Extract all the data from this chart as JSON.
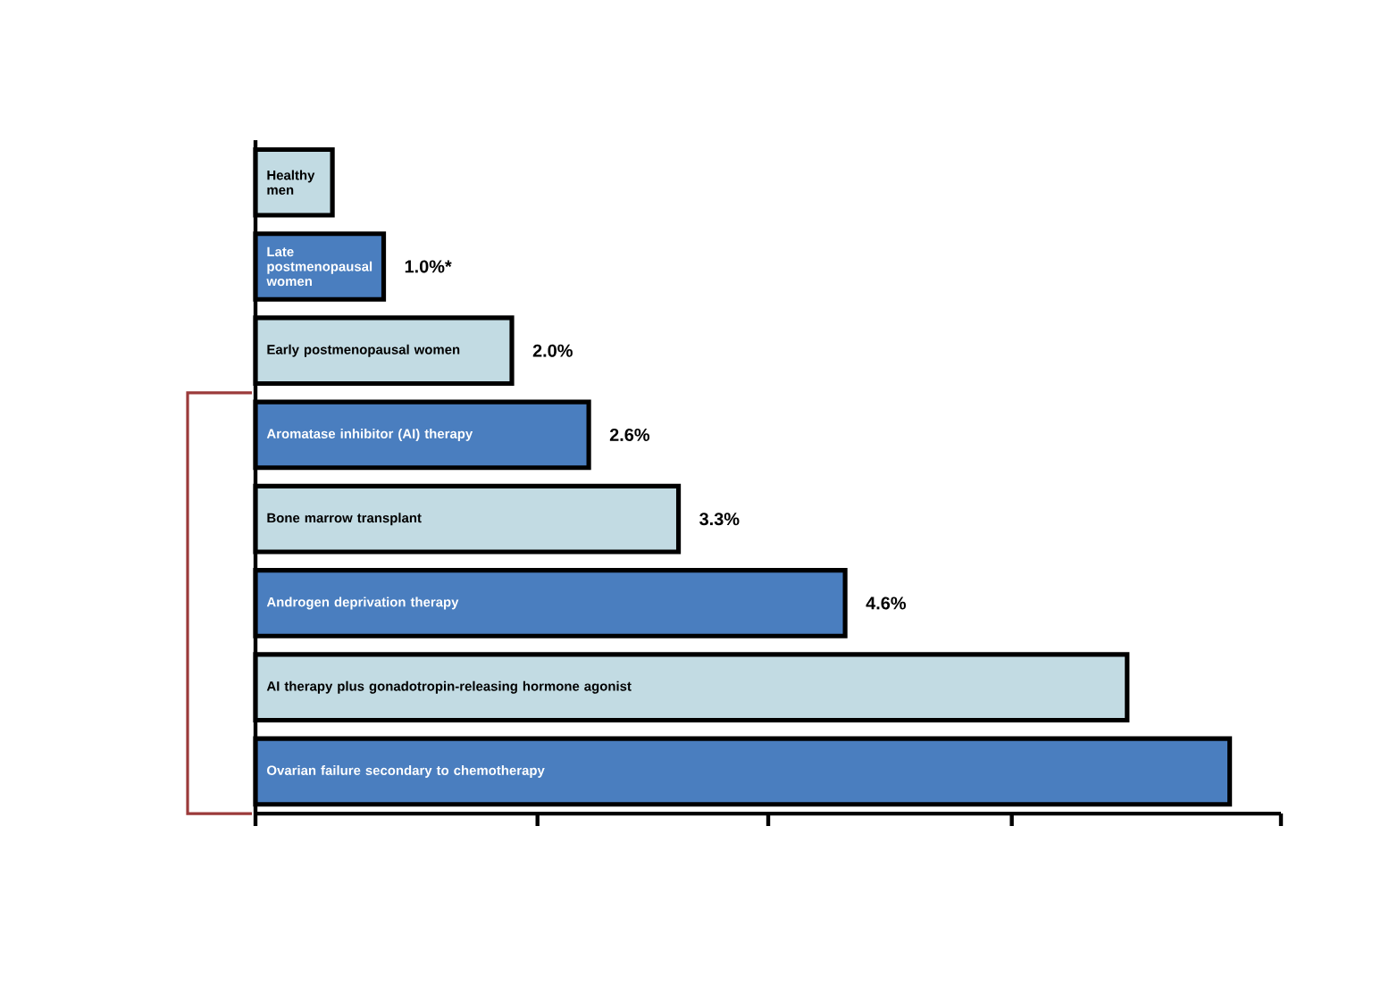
{
  "chart_data": {
    "type": "bar",
    "orientation": "horizontal",
    "categories": [
      "Healthy men",
      "Late postmenopausal women",
      "Early postmenopausal women",
      "Aromatase inhibitor (AI) therapy",
      "Bone marrow transplant",
      "Androgen deprivation therapy",
      "AI therapy plus gonadotropin-releasing hormone agonist",
      "Ovarian failure secondary to chemotherapy"
    ],
    "values": [
      0.6,
      1.0,
      2.0,
      2.6,
      3.3,
      4.6,
      6.8,
      7.6
    ],
    "colors": [
      "#c2dbe3",
      "#4a7ebf",
      "#c2dbe3",
      "#4a7ebf",
      "#c2dbe3",
      "#4a7ebf",
      "#c2dbe3",
      "#4a7ebf"
    ],
    "value_labels": [
      null,
      "1.0%*",
      "2.0%",
      "2.6%",
      "3.3%",
      "4.6%",
      null,
      null
    ],
    "xlim": [
      0,
      8
    ],
    "xticks": [
      {
        "value": 0,
        "label": null
      },
      {
        "value": 2.2,
        "label": null
      },
      {
        "value": 4.0,
        "label": null
      },
      {
        "value": 5.9,
        "label": null
      },
      {
        "value": 8.0,
        "label": null
      }
    ]
  }
}
